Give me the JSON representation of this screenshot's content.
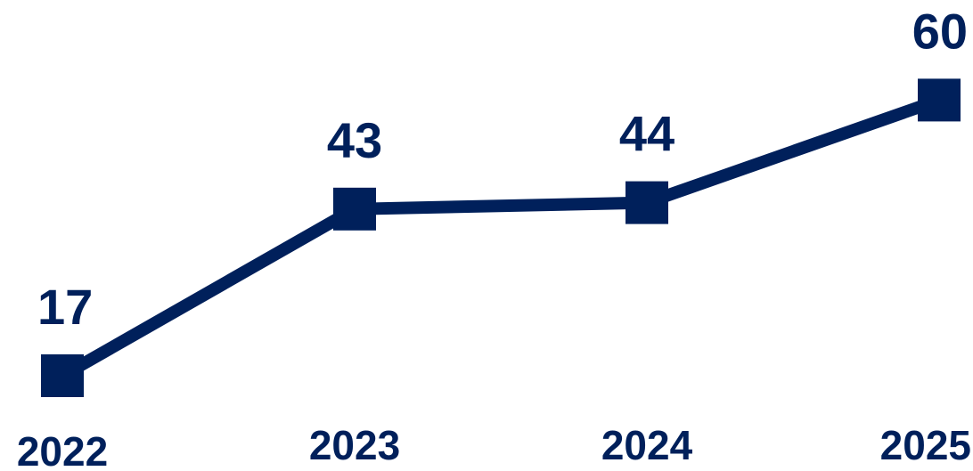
{
  "chart_data": {
    "type": "line",
    "title": "",
    "xlabel": "",
    "ylabel": "",
    "categories": [
      "2022",
      "2023",
      "2024",
      "2025"
    ],
    "series": [
      {
        "values": [
          17,
          43,
          44,
          60
        ]
      }
    ],
    "data_labels": [
      "17",
      "43",
      "44",
      "60"
    ],
    "marker": "square",
    "grid": false,
    "legend": "none",
    "color": "#00205b"
  }
}
